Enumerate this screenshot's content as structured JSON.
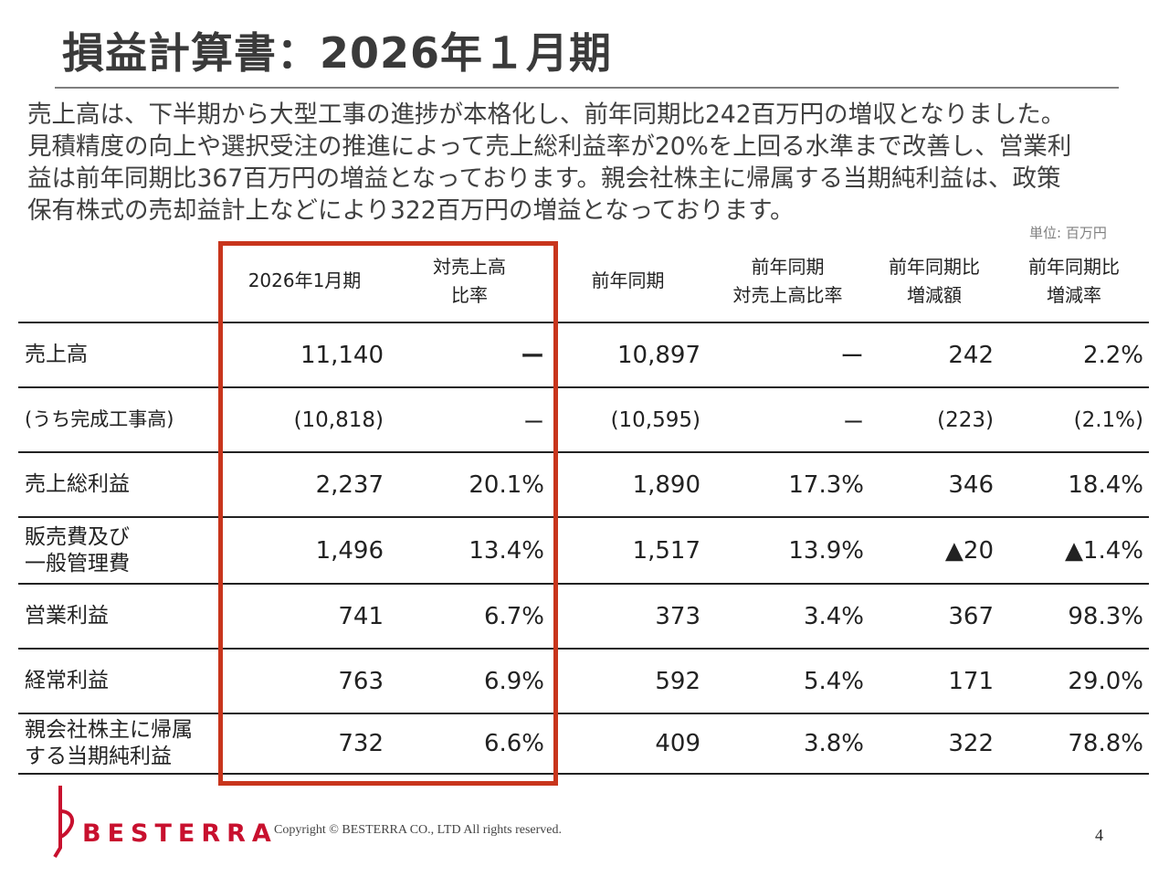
{
  "title": "損益計算書：2026年１月期",
  "summary": [
    "売上高は、下半期から大型工事の進捗が本格化し、前年同期比242百万円の増収となりました。",
    "見積精度の向上や選択受注の推進によって売上総利益率が20%を上回る水準まで改善し、営業利",
    "益は前年同期比367百万円の増益となっております。親会社株主に帰属する当期純利益は、政策",
    "保有株式の売却益計上などにより322百万円の増益となっております。"
  ],
  "unit_label": "単位: 百万円",
  "table": {
    "headers": [
      [
        ""
      ],
      [
        "2026年1月期"
      ],
      [
        "対売上高",
        "比率"
      ],
      [
        "前年同期"
      ],
      [
        "前年同期",
        "対売上高比率"
      ],
      [
        "前年同期比",
        "増減額"
      ],
      [
        "前年同期比",
        "増減率"
      ]
    ],
    "rows": [
      {
        "label": [
          "売上高"
        ],
        "cells": [
          "11,140",
          "ー",
          "10,897",
          "ー",
          "242",
          "2.2%"
        ]
      },
      {
        "label": [
          "(うち完成工事高)"
        ],
        "cells": [
          "(10,818)",
          "ー",
          "(10,595)",
          "ー",
          "(223)",
          "(2.1%)"
        ]
      },
      {
        "label": [
          "売上総利益"
        ],
        "cells": [
          "2,237",
          "20.1%",
          "1,890",
          "17.3%",
          "346",
          "18.4%"
        ]
      },
      {
        "label": [
          "販売費及び",
          "一般管理費"
        ],
        "cells": [
          "1,496",
          "13.4%",
          "1,517",
          "13.9%",
          "▲20",
          "▲1.4%"
        ]
      },
      {
        "label": [
          "営業利益"
        ],
        "cells": [
          "741",
          "6.7%",
          "373",
          "3.4%",
          "367",
          "98.3%"
        ]
      },
      {
        "label": [
          "経常利益"
        ],
        "cells": [
          "763",
          "6.9%",
          "592",
          "5.4%",
          "171",
          "29.0%"
        ]
      },
      {
        "label": [
          "親会社株主に帰属",
          "する当期純利益"
        ],
        "cells": [
          "732",
          "6.6%",
          "409",
          "3.8%",
          "322",
          "78.8%"
        ]
      }
    ]
  },
  "logo_text": "BESTERRA",
  "copyright": "Copyright © BESTERRA CO., LTD All rights reserved.",
  "page_number": "4",
  "colors": {
    "highlight_box": "#c8351c",
    "brand": "#c8102e"
  }
}
